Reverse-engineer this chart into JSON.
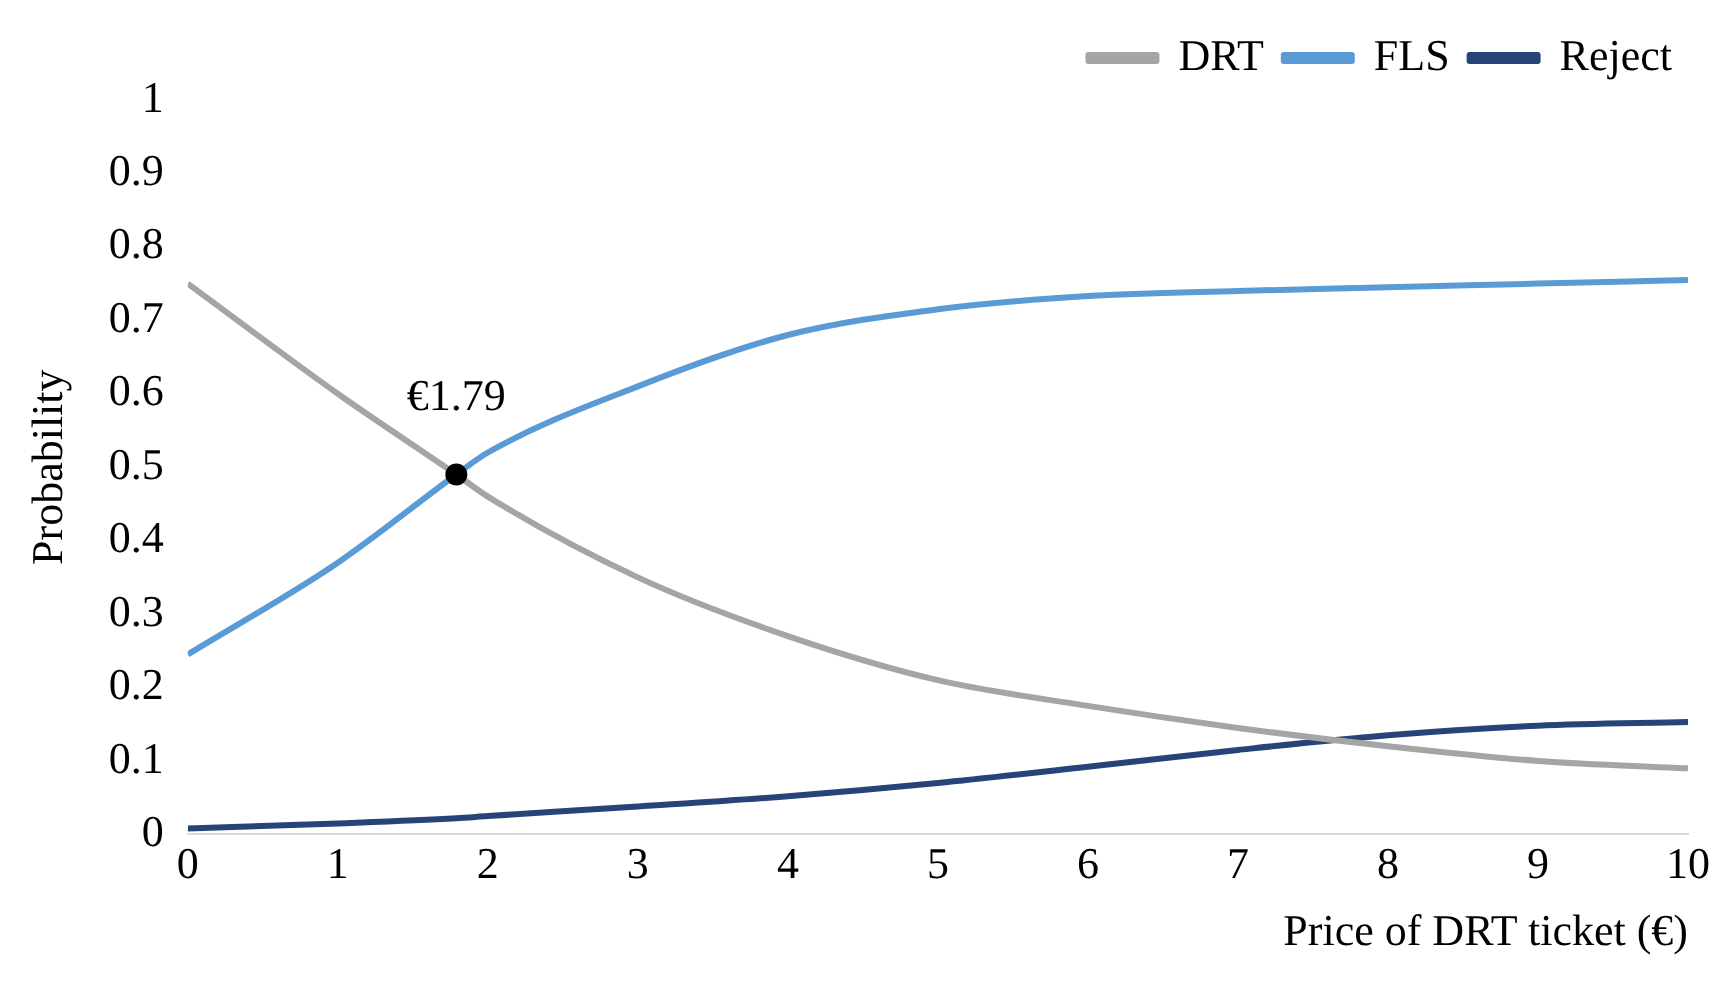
{
  "chart_data": {
    "type": "line",
    "xlabel": "Price of DRT ticket (€)",
    "ylabel": "Probability",
    "x": [
      0,
      1,
      1.79,
      2,
      3,
      4,
      5,
      6,
      7,
      8,
      9,
      10
    ],
    "series": [
      {
        "name": "DRT",
        "color": "#a5a5a5",
        "values": [
          0.75,
          0.6,
          0.49,
          0.46,
          0.35,
          0.27,
          0.21,
          0.175,
          0.145,
          0.12,
          0.1,
          0.09
        ]
      },
      {
        "name": "FLS",
        "color": "#5b9bd5",
        "values": [
          0.245,
          0.37,
          0.49,
          0.52,
          0.61,
          0.68,
          0.715,
          0.733,
          0.74,
          0.745,
          0.75,
          0.755
        ]
      },
      {
        "name": "Reject",
        "color": "#264478",
        "values": [
          0.008,
          0.015,
          0.022,
          0.025,
          0.038,
          0.052,
          0.07,
          0.092,
          0.115,
          0.135,
          0.148,
          0.153
        ]
      },
      {
        "type": "scatter",
        "color": "#000000",
        "x": [
          1.79
        ],
        "values": [
          0.49
        ]
      }
    ],
    "annotations": [
      {
        "text": "€1.79",
        "x": 1.79,
        "y": 0.49
      }
    ],
    "xlim": [
      0,
      10
    ],
    "xticks": [
      0,
      1,
      2,
      3,
      4,
      5,
      6,
      7,
      8,
      9,
      10
    ],
    "ylim": [
      0,
      1
    ],
    "yticks": [
      0,
      0.1,
      0.2,
      0.3,
      0.4,
      0.5,
      0.6,
      0.7,
      0.8,
      0.9,
      1
    ],
    "grid": false,
    "legend": "top right",
    "line_style": "solid"
  }
}
